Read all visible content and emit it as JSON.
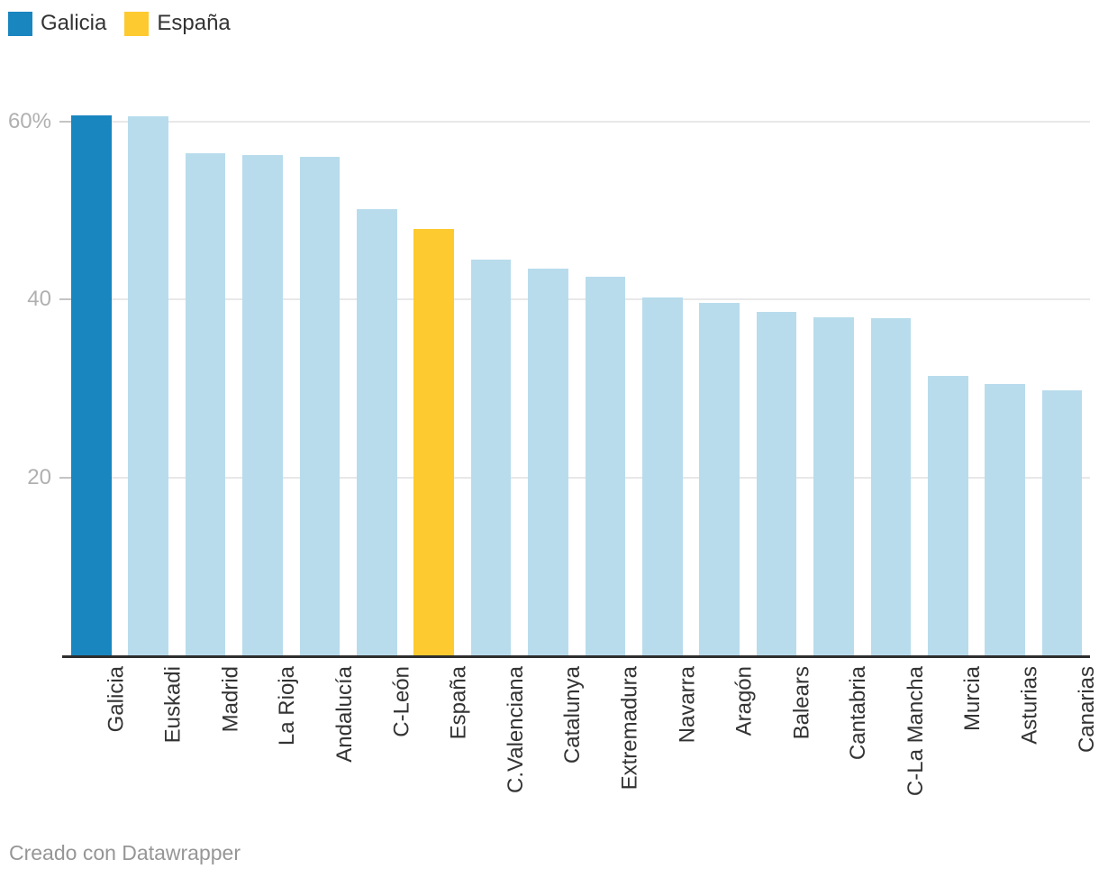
{
  "legend": {
    "items": [
      {
        "label": "Galicia",
        "color_key": "galicia_blue"
      },
      {
        "label": "España",
        "color_key": "espana_yellow"
      }
    ]
  },
  "footer": {
    "text": "Creado con Datawrapper"
  },
  "colors": {
    "galicia_blue": "#1a86c0",
    "espana_yellow": "#fdca2f",
    "region_light_blue": "#b8dcec",
    "grid": "#e8e8e8",
    "tick": "#c4c4c4",
    "baseline": "#2e2e2e",
    "axis_tick_text": "#b0b0b0",
    "category_text": "#333333",
    "footer_text": "#969696"
  },
  "chart_data": {
    "type": "bar",
    "title": "",
    "xlabel": "",
    "ylabel": "",
    "unit": "%",
    "categories": [
      "Galicia",
      "Euskadi",
      "Madrid",
      "La Rioja",
      "Andalucía",
      "C-León",
      "España",
      "C.Valenciana",
      "Catalunya",
      "Extremadura",
      "Navarra",
      "Aragón",
      "Balears",
      "Cantabria",
      "C-La Mancha",
      "Murcia",
      "Asturias",
      "Canarias"
    ],
    "values": [
      60.7,
      60.6,
      56.5,
      56.2,
      56.0,
      50.2,
      47.9,
      44.5,
      43.5,
      42.6,
      40.2,
      39.6,
      38.6,
      38.0,
      37.9,
      31.4,
      30.5,
      29.8
    ],
    "bar_roles": [
      "galicia_blue",
      "region_light_blue",
      "region_light_blue",
      "region_light_blue",
      "region_light_blue",
      "region_light_blue",
      "espana_yellow",
      "region_light_blue",
      "region_light_blue",
      "region_light_blue",
      "region_light_blue",
      "region_light_blue",
      "region_light_blue",
      "region_light_blue",
      "region_light_blue",
      "region_light_blue",
      "region_light_blue",
      "region_light_blue"
    ],
    "ylim": [
      0,
      63
    ],
    "yticks": [
      {
        "value": 20,
        "label": "20"
      },
      {
        "value": 40,
        "label": "40"
      },
      {
        "value": 60,
        "label": "60%"
      }
    ],
    "grid": true,
    "legend_position": "top-left",
    "x_labels_rotated_degrees": -90
  }
}
